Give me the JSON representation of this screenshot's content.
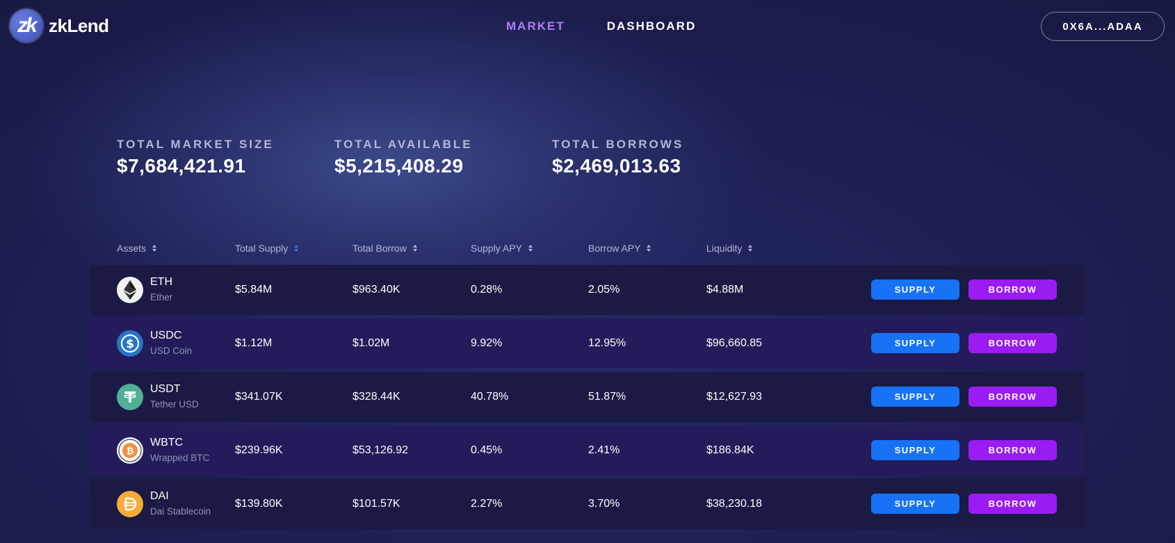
{
  "header": {
    "logo_glyph": "zk",
    "logo_text": "zkLend",
    "nav": [
      {
        "label": "MARKET",
        "active": true
      },
      {
        "label": "DASHBOARD",
        "active": false
      }
    ],
    "wallet": "0X6A...ADAA"
  },
  "stats": [
    {
      "label": "TOTAL MARKET SIZE",
      "value": "$7,684,421.91"
    },
    {
      "label": "TOTAL AVAILABLE",
      "value": "$5,215,408.29"
    },
    {
      "label": "TOTAL BORROWS",
      "value": "$2,469,013.63"
    }
  ],
  "table": {
    "columns": [
      "Assets",
      "Total Supply",
      "Total Borrow",
      "Supply APY",
      "Borrow APY",
      "Liquidity"
    ],
    "active_sort_column": "Total Supply",
    "supply_label": "SUPPLY",
    "borrow_label": "BORROW",
    "rows": [
      {
        "symbol": "ETH",
        "name": "Ether",
        "icon": "eth-icon",
        "total_supply": "$5.84M",
        "total_borrow": "$963.40K",
        "supply_apy": "0.28%",
        "borrow_apy": "2.05%",
        "liquidity": "$4.88M"
      },
      {
        "symbol": "USDC",
        "name": "USD Coin",
        "icon": "usdc-icon",
        "total_supply": "$1.12M",
        "total_borrow": "$1.02M",
        "supply_apy": "9.92%",
        "borrow_apy": "12.95%",
        "liquidity": "$96,660.85"
      },
      {
        "symbol": "USDT",
        "name": "Tether USD",
        "icon": "usdt-icon",
        "total_supply": "$341.07K",
        "total_borrow": "$328.44K",
        "supply_apy": "40.78%",
        "borrow_apy": "51.87%",
        "liquidity": "$12,627.93"
      },
      {
        "symbol": "WBTC",
        "name": "Wrapped BTC",
        "icon": "wbtc-icon",
        "total_supply": "$239.96K",
        "total_borrow": "$53,126.92",
        "supply_apy": "0.45%",
        "borrow_apy": "2.41%",
        "liquidity": "$186.84K"
      },
      {
        "symbol": "DAI",
        "name": "Dai Stablecoin",
        "icon": "dai-icon",
        "total_supply": "$139.80K",
        "total_borrow": "$101.57K",
        "supply_apy": "2.27%",
        "borrow_apy": "3.70%",
        "liquidity": "$38,230.18"
      }
    ]
  },
  "colors": {
    "accent_purple": "#b27cf2",
    "supply_button": "#1772f5",
    "borrow_button": "#9a1cf2",
    "row_odd": "#1b1a45",
    "row_even": "#241c5a"
  }
}
